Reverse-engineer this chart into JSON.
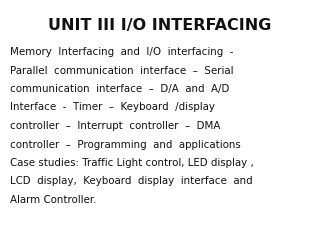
{
  "title": "UNIT III I/O INTERFACING",
  "title_fontsize": 11.5,
  "title_fontweight": "bold",
  "title_color": "#111111",
  "body_lines": [
    "Memory  Interfacing  and  I/O  interfacing  -",
    "Parallel  communication  interface  –  Serial",
    "communication  interface  –  D/A  and  A/D",
    "Interface  -  Timer  –  Keyboard  /display",
    "controller  –  Interrupt  controller  –  DMA",
    "controller  –  Programming  and  applications",
    "Case studies: Traffic Light control, LED display ,",
    "LCD  display,  Keyboard  display  interface  and",
    "Alarm Controller."
  ],
  "body_fontsize": 7.4,
  "body_color": "#111111",
  "bg_color": "#ffffff",
  "fig_width": 3.2,
  "fig_height": 2.4,
  "dpi": 100
}
